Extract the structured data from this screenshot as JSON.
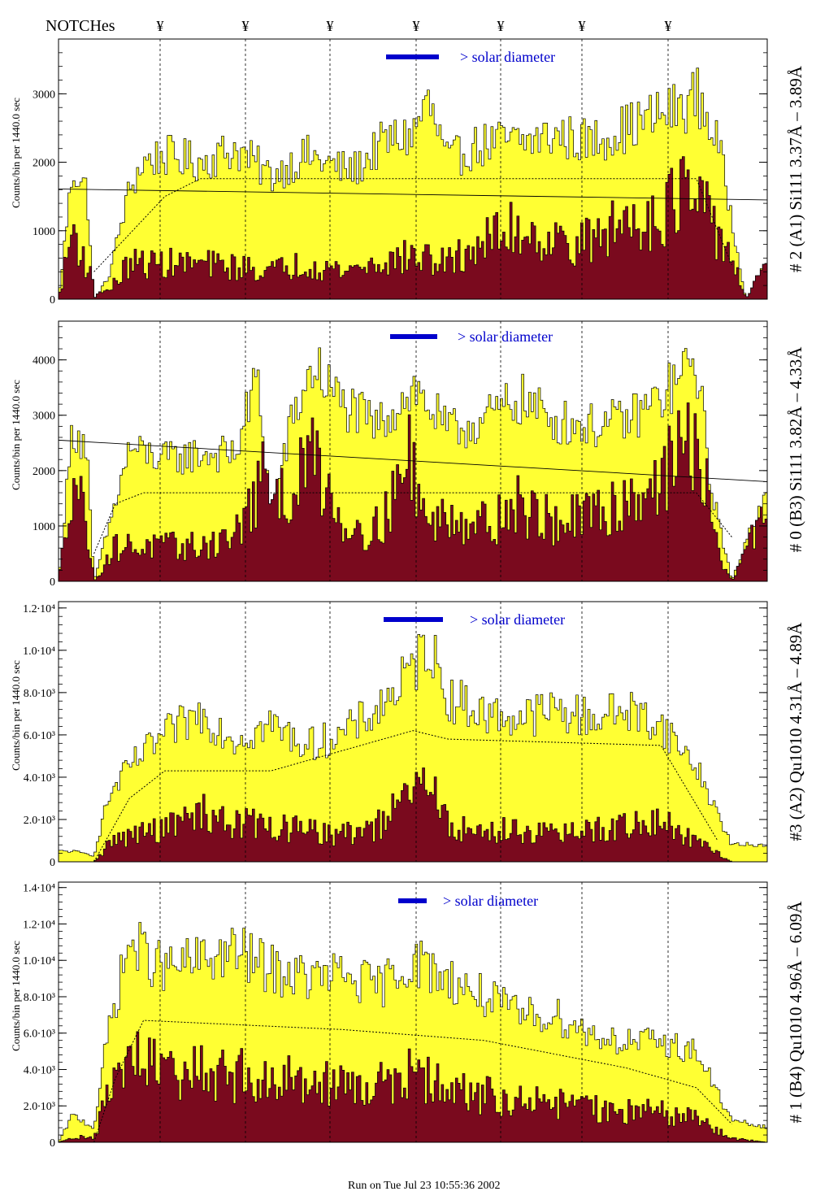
{
  "header": {
    "notches_label": "NOTCHes",
    "notch_marker": "¥",
    "notch_x": [
      197,
      302,
      406,
      512,
      616,
      716,
      822
    ]
  },
  "footer": {
    "run_text": "Run on Tue Jul 23 10:55:36 2002"
  },
  "colors": {
    "fill_total": "#ffff33",
    "fill_sub": "#7a0a1e",
    "legend": "#0000cc",
    "line": "#000000"
  },
  "chart_data": [
    {
      "type": "bar",
      "title": "# 2 (A1) Si111  3.37Å – 3.89Å",
      "ylabel": "Counts/bin per   1440.0 sec",
      "ytick_labels": [
        "0",
        "1000",
        "2000",
        "3000"
      ],
      "ytick_values": [
        0,
        1000,
        2000,
        3000
      ],
      "ylim": [
        0,
        3800
      ],
      "legend": "> solar diameter",
      "series": [
        {
          "name": "total",
          "envelope": [
            [
              0,
              0
            ],
            [
              0.02,
              1900
            ],
            [
              0.04,
              1600
            ],
            [
              0.05,
              0
            ],
            [
              0.07,
              300
            ],
            [
              0.1,
              1600
            ],
            [
              0.12,
              2000
            ],
            [
              0.15,
              2100
            ],
            [
              0.2,
              2000
            ],
            [
              0.25,
              2200
            ],
            [
              0.3,
              1800
            ],
            [
              0.35,
              2100
            ],
            [
              0.4,
              1900
            ],
            [
              0.42,
              1900
            ],
            [
              0.46,
              2300
            ],
            [
              0.5,
              2400
            ],
            [
              0.52,
              2900
            ],
            [
              0.55,
              2000
            ],
            [
              0.58,
              2200
            ],
            [
              0.62,
              2300
            ],
            [
              0.66,
              2300
            ],
            [
              0.7,
              2400
            ],
            [
              0.75,
              2300
            ],
            [
              0.8,
              2500
            ],
            [
              0.85,
              2700
            ],
            [
              0.88,
              2800
            ],
            [
              0.9,
              3000
            ],
            [
              0.93,
              2300
            ],
            [
              0.95,
              1200
            ],
            [
              0.97,
              0
            ],
            [
              1,
              600
            ]
          ]
        },
        {
          "name": "subset",
          "envelope": [
            [
              0,
              0
            ],
            [
              0.02,
              1000
            ],
            [
              0.05,
              200
            ],
            [
              0.07,
              100
            ],
            [
              0.1,
              500
            ],
            [
              0.2,
              500
            ],
            [
              0.3,
              400
            ],
            [
              0.35,
              500
            ],
            [
              0.4,
              400
            ],
            [
              0.5,
              600
            ],
            [
              0.55,
              500
            ],
            [
              0.6,
              800
            ],
            [
              0.65,
              1000
            ],
            [
              0.7,
              800
            ],
            [
              0.75,
              800
            ],
            [
              0.8,
              1100
            ],
            [
              0.85,
              1200
            ],
            [
              0.88,
              1500
            ],
            [
              0.92,
              1100
            ],
            [
              0.95,
              600
            ],
            [
              0.97,
              0
            ],
            [
              1,
              900
            ]
          ]
        }
      ],
      "reference_curve": [
        [
          0.05,
          400
        ],
        [
          0.15,
          1500
        ],
        [
          0.2,
          1760
        ],
        [
          0.9,
          1760
        ],
        [
          0.95,
          500
        ]
      ],
      "trend_line": [
        [
          0,
          1610
        ],
        [
          1,
          1450
        ]
      ]
    },
    {
      "type": "bar",
      "title": "# 0 (B3) Si111  3.82Å – 4.33Å",
      "ylabel": "Counts/bin per   1440.0 sec",
      "ytick_labels": [
        "0",
        "1000",
        "2000",
        "3000",
        "4000"
      ],
      "ytick_values": [
        0,
        1000,
        2000,
        3000,
        4000
      ],
      "ylim": [
        0,
        4700
      ],
      "legend": "> solar diameter",
      "series": [
        {
          "name": "total",
          "envelope": [
            [
              0,
              0
            ],
            [
              0.02,
              2800
            ],
            [
              0.04,
              2400
            ],
            [
              0.05,
              0
            ],
            [
              0.08,
              1400
            ],
            [
              0.1,
              2400
            ],
            [
              0.15,
              2200
            ],
            [
              0.2,
              2300
            ],
            [
              0.25,
              2300
            ],
            [
              0.28,
              3700
            ],
            [
              0.3,
              1300
            ],
            [
              0.33,
              2900
            ],
            [
              0.36,
              3900
            ],
            [
              0.4,
              3200
            ],
            [
              0.45,
              2800
            ],
            [
              0.5,
              3500
            ],
            [
              0.52,
              3200
            ],
            [
              0.55,
              2700
            ],
            [
              0.6,
              2900
            ],
            [
              0.65,
              3300
            ],
            [
              0.7,
              2900
            ],
            [
              0.75,
              2800
            ],
            [
              0.8,
              2900
            ],
            [
              0.85,
              3300
            ],
            [
              0.9,
              4000
            ],
            [
              0.92,
              1800
            ],
            [
              0.95,
              0
            ],
            [
              1,
              1800
            ]
          ]
        },
        {
          "name": "subset",
          "envelope": [
            [
              0,
              0
            ],
            [
              0.02,
              2000
            ],
            [
              0.04,
              1000
            ],
            [
              0.05,
              0
            ],
            [
              0.08,
              600
            ],
            [
              0.15,
              600
            ],
            [
              0.2,
              600
            ],
            [
              0.25,
              800
            ],
            [
              0.3,
              2000
            ],
            [
              0.33,
              1400
            ],
            [
              0.36,
              2300
            ],
            [
              0.4,
              1000
            ],
            [
              0.45,
              900
            ],
            [
              0.5,
              2200
            ],
            [
              0.52,
              900
            ],
            [
              0.55,
              1200
            ],
            [
              0.6,
              1000
            ],
            [
              0.65,
              1300
            ],
            [
              0.7,
              1000
            ],
            [
              0.75,
              1100
            ],
            [
              0.8,
              1400
            ],
            [
              0.85,
              1800
            ],
            [
              0.9,
              2500
            ],
            [
              0.93,
              500
            ],
            [
              0.95,
              0
            ],
            [
              1,
              1500
            ]
          ]
        }
      ],
      "reference_curve": [
        [
          0.05,
          500
        ],
        [
          0.08,
          1400
        ],
        [
          0.12,
          1600
        ],
        [
          0.9,
          1600
        ],
        [
          0.95,
          800
        ]
      ],
      "trend_line": [
        [
          0,
          2550
        ],
        [
          1,
          1800
        ]
      ]
    },
    {
      "type": "bar",
      "title": "#3 (A2) Qu1010  4.31Å – 4.89Å",
      "ylabel": "Counts/bin per   1440.0 sec",
      "ytick_labels": [
        "0",
        "2.0∙10³",
        "4.0∙10³",
        "6.0∙10³",
        "8.0∙10³",
        "1.0∙10⁴",
        "1.2∙10⁴"
      ],
      "ytick_values": [
        0,
        2000,
        4000,
        6000,
        8000,
        10000,
        12000
      ],
      "ylim": [
        0,
        12300
      ],
      "legend": "> solar diameter",
      "series": [
        {
          "name": "total",
          "envelope": [
            [
              0,
              500
            ],
            [
              0.02,
              500
            ],
            [
              0.05,
              300
            ],
            [
              0.07,
              3000
            ],
            [
              0.1,
              4500
            ],
            [
              0.15,
              6000
            ],
            [
              0.2,
              7000
            ],
            [
              0.25,
              5800
            ],
            [
              0.3,
              6500
            ],
            [
              0.35,
              5500
            ],
            [
              0.4,
              6000
            ],
            [
              0.45,
              7200
            ],
            [
              0.5,
              9000
            ],
            [
              0.52,
              10500
            ],
            [
              0.55,
              7800
            ],
            [
              0.6,
              7000
            ],
            [
              0.65,
              6800
            ],
            [
              0.7,
              7200
            ],
            [
              0.75,
              6800
            ],
            [
              0.8,
              7200
            ],
            [
              0.85,
              6500
            ],
            [
              0.9,
              4500
            ],
            [
              0.95,
              800
            ],
            [
              1,
              800
            ]
          ]
        },
        {
          "name": "subset",
          "envelope": [
            [
              0,
              0
            ],
            [
              0.05,
              0
            ],
            [
              0.07,
              800
            ],
            [
              0.1,
              1200
            ],
            [
              0.15,
              1500
            ],
            [
              0.2,
              2200
            ],
            [
              0.25,
              1800
            ],
            [
              0.3,
              1600
            ],
            [
              0.35,
              1400
            ],
            [
              0.4,
              1200
            ],
            [
              0.45,
              1600
            ],
            [
              0.5,
              3000
            ],
            [
              0.52,
              3800
            ],
            [
              0.55,
              1600
            ],
            [
              0.6,
              1300
            ],
            [
              0.65,
              1500
            ],
            [
              0.7,
              1200
            ],
            [
              0.75,
              1400
            ],
            [
              0.8,
              1600
            ],
            [
              0.85,
              1800
            ],
            [
              0.9,
              900
            ],
            [
              0.95,
              0
            ],
            [
              1,
              0
            ]
          ]
        }
      ],
      "reference_curve": [
        [
          0.05,
          0
        ],
        [
          0.1,
          3000
        ],
        [
          0.15,
          4300
        ],
        [
          0.3,
          4300
        ],
        [
          0.5,
          6200
        ],
        [
          0.55,
          5800
        ],
        [
          0.85,
          5500
        ],
        [
          0.93,
          1000
        ]
      ],
      "trend_line": null
    },
    {
      "type": "bar",
      "title": "# 1 (B4) Qu1010 4.96Å – 6.09Å",
      "ylabel": "Counts/bin per   1440.0 sec",
      "ytick_labels": [
        "0",
        "2.0∙10³",
        "4.0∙10³",
        "6.0∙10³",
        "8.0∙10³",
        "1.0∙10⁴",
        "1.2∙10⁴",
        "1.4∙10⁴"
      ],
      "ytick_values": [
        0,
        2000,
        4000,
        6000,
        8000,
        10000,
        12000,
        14000
      ],
      "ylim": [
        0,
        14300
      ],
      "legend": "> solar diameter",
      "series": [
        {
          "name": "total",
          "envelope": [
            [
              0,
              0
            ],
            [
              0.02,
              1500
            ],
            [
              0.05,
              800
            ],
            [
              0.07,
              6000
            ],
            [
              0.1,
              11000
            ],
            [
              0.15,
              9500
            ],
            [
              0.2,
              10000
            ],
            [
              0.25,
              10500
            ],
            [
              0.3,
              9500
            ],
            [
              0.35,
              9000
            ],
            [
              0.4,
              9200
            ],
            [
              0.45,
              8500
            ],
            [
              0.5,
              10000
            ],
            [
              0.55,
              9000
            ],
            [
              0.6,
              8000
            ],
            [
              0.65,
              7000
            ],
            [
              0.7,
              7000
            ],
            [
              0.75,
              6000
            ],
            [
              0.8,
              5500
            ],
            [
              0.85,
              5500
            ],
            [
              0.9,
              5000
            ],
            [
              0.95,
              1200
            ],
            [
              1,
              800
            ]
          ]
        },
        {
          "name": "subset",
          "envelope": [
            [
              0,
              0
            ],
            [
              0.02,
              300
            ],
            [
              0.05,
              200
            ],
            [
              0.07,
              2500
            ],
            [
              0.1,
              4500
            ],
            [
              0.15,
              3500
            ],
            [
              0.2,
              3800
            ],
            [
              0.25,
              3500
            ],
            [
              0.3,
              3200
            ],
            [
              0.35,
              3500
            ],
            [
              0.4,
              3000
            ],
            [
              0.45,
              3000
            ],
            [
              0.5,
              3500
            ],
            [
              0.55,
              2800
            ],
            [
              0.6,
              2500
            ],
            [
              0.65,
              2200
            ],
            [
              0.7,
              2000
            ],
            [
              0.75,
              1800
            ],
            [
              0.8,
              1600
            ],
            [
              0.85,
              1600
            ],
            [
              0.9,
              1200
            ],
            [
              0.95,
              200
            ],
            [
              1,
              0
            ]
          ]
        }
      ],
      "reference_curve": [
        [
          0.05,
          0
        ],
        [
          0.08,
          3500
        ],
        [
          0.12,
          6700
        ],
        [
          0.4,
          6200
        ],
        [
          0.6,
          5600
        ],
        [
          0.8,
          4100
        ],
        [
          0.9,
          3000
        ],
        [
          0.95,
          1000
        ]
      ],
      "trend_line": null
    }
  ]
}
